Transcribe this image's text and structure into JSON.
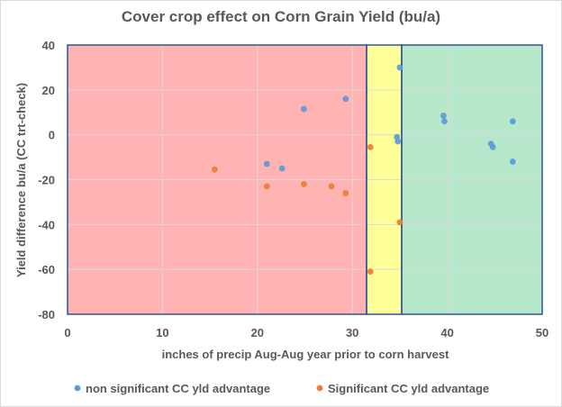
{
  "chart_data": {
    "type": "scatter",
    "title": "Cover crop effect on Corn Grain Yield (bu/a)",
    "xlabel": "inches of precip Aug-Aug year prior to corn harvest",
    "ylabel": "Yield difference bu/a (CC trt-check)",
    "xlim": [
      0,
      50
    ],
    "ylim": [
      -80,
      40
    ],
    "xticks": [
      0,
      10,
      20,
      30,
      40,
      50
    ],
    "yticks": [
      40,
      20,
      0,
      -20,
      -40,
      -60,
      -80
    ],
    "regions": [
      {
        "name": "red-zone",
        "x": [
          0,
          31.5
        ],
        "color": "#ffb3b3"
      },
      {
        "name": "yellow-zone",
        "x": [
          31.5,
          35.2
        ],
        "color": "#ffff99"
      },
      {
        "name": "green-zone",
        "x": [
          35.2,
          50
        ],
        "color": "#b7e8cc"
      }
    ],
    "series": [
      {
        "name": "non significant CC yld advantage",
        "color": "#5b9bd5",
        "points": [
          [
            21.0,
            -13
          ],
          [
            22.6,
            -15
          ],
          [
            24.9,
            11.5
          ],
          [
            29.3,
            16
          ],
          [
            34.7,
            -1
          ],
          [
            34.8,
            -3
          ],
          [
            35.0,
            30
          ],
          [
            39.6,
            8.5
          ],
          [
            39.7,
            6
          ],
          [
            44.6,
            -4
          ],
          [
            44.8,
            -5.5
          ],
          [
            46.9,
            6
          ],
          [
            46.9,
            -12
          ]
        ]
      },
      {
        "name": "Significant CC yld advantage",
        "color": "#ed7d31",
        "points": [
          [
            15.5,
            -15.5
          ],
          [
            21.0,
            -23
          ],
          [
            24.9,
            -22
          ],
          [
            27.8,
            -23
          ],
          [
            29.3,
            -26
          ],
          [
            31.9,
            -5.5
          ],
          [
            31.9,
            -61
          ],
          [
            35.0,
            -39
          ]
        ]
      }
    ],
    "legend": "bottom"
  }
}
